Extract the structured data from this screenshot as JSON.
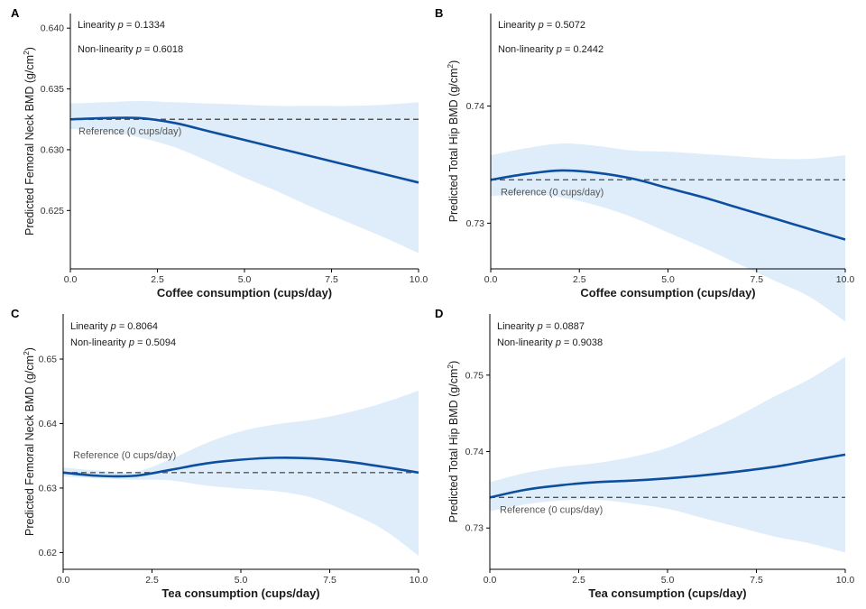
{
  "chart_data": [
    {
      "panel": "A",
      "type": "line",
      "xlabel": "Coffee consumption (cups/day)",
      "ylabel": "Predicted Femoral Neck BMD (g/cm",
      "ylabel_sup": "2",
      "ylabel_tail": ")",
      "xlim": [
        0,
        10
      ],
      "ylim": [
        0.6202,
        0.6412
      ],
      "xticks": [
        0.0,
        2.5,
        5.0,
        7.5,
        10.0
      ],
      "xtick_labels": [
        "0.0",
        "2.5",
        "5.0",
        "7.5",
        "10.0"
      ],
      "yticks": [
        0.625,
        0.63,
        0.635,
        0.64
      ],
      "ytick_labels": [
        "0.625",
        "0.630",
        "0.635",
        "0.640"
      ],
      "stats": [
        {
          "prefix": "Linearity ",
          "p": "p",
          "value": " = 0.1334"
        },
        {
          "prefix": "Non-linearity ",
          "p": "p",
          "value": " = 0.6018"
        }
      ],
      "reference_label": "Reference (0 cups/day)",
      "reference_value": 0.6325,
      "x": [
        0,
        1,
        2,
        3,
        4,
        5,
        6,
        7,
        8,
        9,
        10
      ],
      "y": [
        0.6325,
        0.6326,
        0.6326,
        0.6322,
        0.6315,
        0.6308,
        0.6301,
        0.6294,
        0.6287,
        0.628,
        0.6273
      ],
      "ci_lower": [
        0.6317,
        0.6315,
        0.631,
        0.6302,
        0.629,
        0.6277,
        0.6265,
        0.6252,
        0.624,
        0.6228,
        0.6215
      ],
      "ci_upper": [
        0.6338,
        0.6339,
        0.634,
        0.6339,
        0.6338,
        0.6337,
        0.6336,
        0.6336,
        0.6336,
        0.6337,
        0.6339
      ]
    },
    {
      "panel": "B",
      "type": "line",
      "xlabel": "Coffee consumption (cups/day)",
      "ylabel": "Predicted Total Hip BMD (g/cm",
      "ylabel_sup": "2",
      "ylabel_tail": ")",
      "xlim": [
        0,
        10
      ],
      "ylim": [
        0.7261,
        0.7479
      ],
      "xticks": [
        0.0,
        2.5,
        5.0,
        7.5,
        10.0
      ],
      "xtick_labels": [
        "0.0",
        "2.5",
        "5.0",
        "7.5",
        "10.0"
      ],
      "yticks": [
        0.73,
        0.74
      ],
      "ytick_labels": [
        "0.73",
        "0.74"
      ],
      "stats": [
        {
          "prefix": "Linearity ",
          "p": "p",
          "value": " = 0.5072"
        },
        {
          "prefix": "Non-linearity ",
          "p": "p",
          "value": " = 0.2442"
        }
      ],
      "reference_label": "Reference (0 cups/day)",
      "reference_value": 0.7337,
      "x": [
        0,
        1,
        2,
        3,
        4,
        5,
        6,
        7,
        8,
        9,
        10
      ],
      "y": [
        0.7337,
        0.7342,
        0.7345,
        0.7343,
        0.7338,
        0.733,
        0.7322,
        0.7313,
        0.7304,
        0.7295,
        0.7286
      ],
      "ci_lower": [
        0.7323,
        0.7325,
        0.7322,
        0.7315,
        0.7305,
        0.7292,
        0.7279,
        0.7265,
        0.7251,
        0.7237,
        0.7216
      ],
      "ci_upper": [
        0.7358,
        0.7364,
        0.7368,
        0.7366,
        0.7362,
        0.7361,
        0.7359,
        0.7357,
        0.7355,
        0.7355,
        0.7358
      ]
    },
    {
      "panel": "C",
      "type": "line",
      "xlabel": "Tea consumption (cups/day)",
      "ylabel": "Predicted Femoral Neck BMD (g/cm",
      "ylabel_sup": "2",
      "ylabel_tail": ")",
      "xlim": [
        0,
        10
      ],
      "ylim": [
        0.6174,
        0.657
      ],
      "xticks": [
        0.0,
        2.5,
        5.0,
        7.5,
        10.0
      ],
      "xtick_labels": [
        "0.0",
        "2.5",
        "5.0",
        "7.5",
        "10.0"
      ],
      "yticks": [
        0.62,
        0.63,
        0.64,
        0.65
      ],
      "ytick_labels": [
        "0.62",
        "0.63",
        "0.64",
        "0.65"
      ],
      "stats": [
        {
          "prefix": "Linearity ",
          "p": "p",
          "value": " = 0.8064"
        },
        {
          "prefix": "Non-linearity ",
          "p": "p",
          "value": " = 0.5094"
        }
      ],
      "reference_label": "Reference (0 cups/day)",
      "reference_value": 0.6324,
      "x": [
        0,
        1,
        2,
        3,
        4,
        5,
        6,
        7,
        8,
        9,
        10
      ],
      "y": [
        0.6324,
        0.6319,
        0.6319,
        0.6328,
        0.6338,
        0.6344,
        0.6347,
        0.6346,
        0.6341,
        0.6333,
        0.6324
      ],
      "ci_lower": [
        0.6318,
        0.6315,
        0.6313,
        0.6312,
        0.6304,
        0.6299,
        0.6295,
        0.6285,
        0.6263,
        0.6236,
        0.6195
      ],
      "ci_upper": [
        0.6332,
        0.6327,
        0.6325,
        0.6344,
        0.6369,
        0.6388,
        0.6399,
        0.6406,
        0.6417,
        0.6432,
        0.6451
      ]
    },
    {
      "panel": "D",
      "type": "line",
      "xlabel": "Tea consumption (cups/day)",
      "ylabel": "Predicted Total Hip BMD (g/cm",
      "ylabel_sup": "2",
      "ylabel_tail": ")",
      "xlim": [
        0,
        10
      ],
      "ylim": [
        0.7246,
        0.758
      ],
      "xticks": [
        0.0,
        2.5,
        5.0,
        7.5,
        10.0
      ],
      "xtick_labels": [
        "0.0",
        "2.5",
        "5.0",
        "7.5",
        "10.0"
      ],
      "yticks": [
        0.73,
        0.74,
        0.75
      ],
      "ytick_labels": [
        "0.73",
        "0.74",
        "0.75"
      ],
      "stats": [
        {
          "prefix": "Linearity ",
          "p": "p",
          "value": " = 0.0887"
        },
        {
          "prefix": "Non-linearity ",
          "p": "p",
          "value": " = 0.9038"
        }
      ],
      "reference_label": "Reference (0 cups/day)",
      "reference_value": 0.734,
      "x": [
        0,
        1,
        2,
        3,
        4,
        5,
        6,
        7,
        8,
        9,
        10
      ],
      "y": [
        0.734,
        0.735,
        0.7356,
        0.736,
        0.7362,
        0.7365,
        0.7369,
        0.7374,
        0.738,
        0.7388,
        0.7396
      ],
      "ci_lower": [
        0.7322,
        0.7331,
        0.7336,
        0.7337,
        0.7332,
        0.7325,
        0.7313,
        0.7301,
        0.7289,
        0.728,
        0.7268
      ],
      "ci_upper": [
        0.736,
        0.7372,
        0.738,
        0.7385,
        0.7393,
        0.7405,
        0.7425,
        0.7447,
        0.7472,
        0.7495,
        0.7524
      ]
    }
  ],
  "style": {
    "line_color": "#0d4f9e",
    "ci_fill": "#deedf9",
    "ref_color": "#555555",
    "axis_color": "#000000",
    "text_color": "#1a1a1a",
    "muted_text": "#555555"
  }
}
